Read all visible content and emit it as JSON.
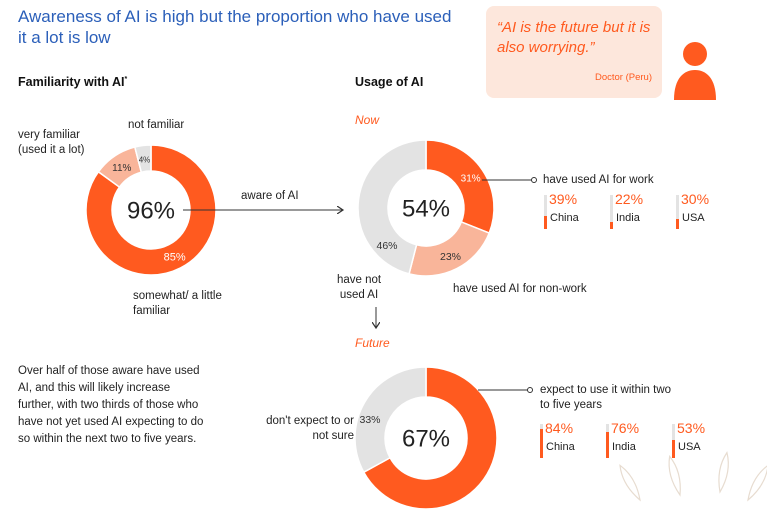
{
  "title": "Awareness of AI is high but the proportion who have used it a lot is low",
  "familiarity": {
    "heading": "Familiarity with AI",
    "footnote_mark": "*",
    "center": "96%",
    "label_very": "very familiar (used it a lot)",
    "label_not": "not familiar",
    "label_somewhat": "somewhat/ a little familiar",
    "arrow_label": "aware of AI"
  },
  "usage": {
    "heading": "Usage of AI",
    "now": "Now",
    "future": "Future",
    "center_now": "54%",
    "center_future": "67%",
    "work_label": "have used AI for work",
    "nonwork_label": "have used AI for non-work",
    "notused_label": "have not used AI",
    "future_label": "expect to use it within two to five years",
    "future_no_label": "don't expect to or not sure"
  },
  "quote": {
    "text": "“AI is the future but it is also worrying.”",
    "source": "Doctor (Peru)"
  },
  "country_stats": {
    "work": [
      {
        "value": "39%",
        "country": "China",
        "v": 39
      },
      {
        "value": "22%",
        "country": "India",
        "v": 22
      },
      {
        "value": "30%",
        "country": "USA",
        "v": 30
      }
    ],
    "future": [
      {
        "value": "84%",
        "country": "China",
        "v": 84
      },
      {
        "value": "76%",
        "country": "India",
        "v": 76
      },
      {
        "value": "53%",
        "country": "USA",
        "v": 53
      }
    ]
  },
  "body_text": "Over half of those aware have used AI, and this will likely increase further, with two thirds of those who have not yet used AI expecting to do so within the next two to five years.",
  "colors": {
    "accent": "#ff5a1f",
    "light": "#f9b59a",
    "grey": "#e3e3e3",
    "title": "#2b5fb9",
    "quote_bg": "#fde7dc"
  },
  "chart_data": [
    {
      "type": "pie",
      "title": "Familiarity with AI",
      "center_label": "96%",
      "slices": [
        {
          "label": "very familiar (used it a lot)",
          "value": 11,
          "color": "#f9b59a"
        },
        {
          "label": "not familiar",
          "value": 4,
          "color": "#e3e3e3"
        },
        {
          "label": "somewhat/ a little familiar",
          "value": 85,
          "color": "#ff5a1f"
        }
      ]
    },
    {
      "type": "pie",
      "title": "Now",
      "center_label": "54%",
      "slices": [
        {
          "label": "have used AI for work",
          "value": 31,
          "color": "#ff5a1f"
        },
        {
          "label": "have used AI for non-work",
          "value": 23,
          "color": "#f9b59a"
        },
        {
          "label": "have not used AI",
          "value": 46,
          "color": "#e3e3e3"
        }
      ]
    },
    {
      "type": "pie",
      "title": "Future",
      "center_label": "67%",
      "slices": [
        {
          "label": "expect to use it within two to five years",
          "value": 67,
          "color": "#ff5a1f"
        },
        {
          "label": "don't expect to or not sure",
          "value": 33,
          "color": "#e3e3e3"
        }
      ]
    }
  ]
}
